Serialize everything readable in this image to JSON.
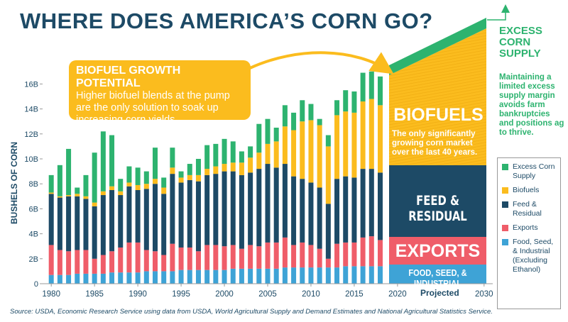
{
  "chart_data": {
    "type": "stacked-bar",
    "title": "WHERE DOES AMERICA’S CORN GO?",
    "y_label": "BUSHELS OF CORN",
    "callout": {
      "heading": "BIOFUEL GROWTH POTENTIAL",
      "body": "Higher biofuel blends at the pump are the only solution to soak up increasing corn yields."
    },
    "panel_labels": {
      "biofuels": "BIOFUELS",
      "biofuels_note": "The only significantly growing corn market over the last 40 years.",
      "feed": "FEED & RESIDUAL",
      "exports": "EXPORTS",
      "fsi": "FOOD, SEED, & INDUSTRIAL",
      "excess": "EXCESS CORN SUPPLY",
      "excess_note": "Maintaining a limited excess supply margin avoids farm bankruptcies and positions ag to thrive."
    },
    "projected_label": "Projected",
    "source": "Source: USDA, Economic Research Service using data from USDA, World Agricultural Supply and Demand Estimates and  National Agricultural Statistics Service.",
    "x": [
      1980,
      1981,
      1982,
      1983,
      1984,
      1985,
      1986,
      1987,
      1988,
      1989,
      1990,
      1991,
      1992,
      1993,
      1994,
      1995,
      1996,
      1997,
      1998,
      1999,
      2000,
      2001,
      2002,
      2003,
      2004,
      2005,
      2006,
      2007,
      2008,
      2009,
      2010,
      2011,
      2012,
      2013,
      2014,
      2015,
      2016,
      2017,
      2018
    ],
    "xlim": [
      1979,
      2031
    ],
    "xticks": [
      1980,
      1985,
      1990,
      1995,
      2000,
      2005,
      2010,
      2015,
      2020,
      2030
    ],
    "ylim": [
      0,
      17
    ],
    "yticks": [
      0,
      {
        "value": 2,
        "label": "2B"
      },
      {
        "value": 4,
        "label": "4B"
      },
      {
        "value": 6,
        "label": "6B"
      },
      {
        "value": 8,
        "label": "8B"
      },
      {
        "value": 10,
        "label": "10B"
      },
      {
        "value": 12,
        "label": "12B"
      },
      {
        "value": 14,
        "label": "14B"
      },
      {
        "value": 16,
        "label": "16B"
      }
    ],
    "grid": false,
    "series": [
      {
        "name": "Excess Corn Supply",
        "color": "#2db36f",
        "values": [
          1.4,
          2.5,
          3.7,
          0.5,
          1.7,
          4.0,
          4.8,
          4.1,
          1.0,
          1.3,
          1.4,
          1.0,
          2.5,
          0.8,
          1.6,
          0.5,
          0.9,
          1.3,
          1.9,
          1.8,
          2.0,
          1.7,
          0.9,
          0.9,
          2.3,
          2.0,
          1.1,
          1.7,
          1.4,
          1.7,
          1.3,
          0.5,
          0.9,
          1.2,
          1.7,
          1.7,
          2.3,
          2.2,
          2.3
        ]
      },
      {
        "name": "Biofuels",
        "color": "#fbbc1e",
        "values": [
          0.1,
          0.1,
          0.1,
          0.2,
          0.2,
          0.3,
          0.3,
          0.3,
          0.3,
          0.3,
          0.4,
          0.4,
          0.4,
          0.5,
          0.5,
          0.4,
          0.4,
          0.5,
          0.5,
          0.6,
          0.6,
          0.7,
          1.0,
          1.2,
          1.3,
          1.6,
          2.1,
          3.0,
          3.7,
          4.6,
          5.0,
          5.0,
          4.6,
          5.1,
          5.2,
          5.2,
          5.4,
          5.6,
          5.4
        ]
      },
      {
        "name": "Feed & Residual",
        "color": "#1d4a66",
        "values": [
          4.1,
          4.2,
          4.4,
          4.3,
          4.1,
          4.2,
          4.8,
          4.9,
          4.2,
          4.5,
          4.2,
          4.9,
          5.4,
          4.9,
          5.6,
          5.2,
          5.4,
          5.6,
          5.6,
          5.7,
          6.0,
          5.9,
          5.9,
          5.8,
          6.2,
          6.3,
          6.0,
          5.9,
          5.5,
          5.1,
          5.0,
          4.9,
          4.4,
          5.2,
          5.3,
          5.2,
          5.5,
          5.4,
          5.4
        ]
      },
      {
        "name": "Exports",
        "color": "#ef5d69",
        "values": [
          2.4,
          2.0,
          1.9,
          1.9,
          1.9,
          1.2,
          1.5,
          1.7,
          2.0,
          2.4,
          2.4,
          1.7,
          1.6,
          1.3,
          2.2,
          1.8,
          1.8,
          1.5,
          2.0,
          2.0,
          1.9,
          1.9,
          1.6,
          1.9,
          1.8,
          2.1,
          2.1,
          2.4,
          1.8,
          2.0,
          1.8,
          1.5,
          0.7,
          1.9,
          1.9,
          1.9,
          2.3,
          2.4,
          2.1
        ]
      },
      {
        "name": "Food, Seed, & Industrial (Excluding Ethanol)",
        "color": "#3ea3d6",
        "values": [
          0.7,
          0.7,
          0.7,
          0.8,
          0.8,
          0.8,
          0.8,
          0.9,
          0.9,
          0.9,
          0.9,
          1.0,
          1.0,
          1.0,
          1.0,
          1.1,
          1.1,
          1.1,
          1.1,
          1.1,
          1.1,
          1.2,
          1.2,
          1.2,
          1.2,
          1.2,
          1.2,
          1.3,
          1.3,
          1.3,
          1.3,
          1.3,
          1.3,
          1.3,
          1.4,
          1.4,
          1.4,
          1.4,
          1.4
        ]
      }
    ]
  }
}
